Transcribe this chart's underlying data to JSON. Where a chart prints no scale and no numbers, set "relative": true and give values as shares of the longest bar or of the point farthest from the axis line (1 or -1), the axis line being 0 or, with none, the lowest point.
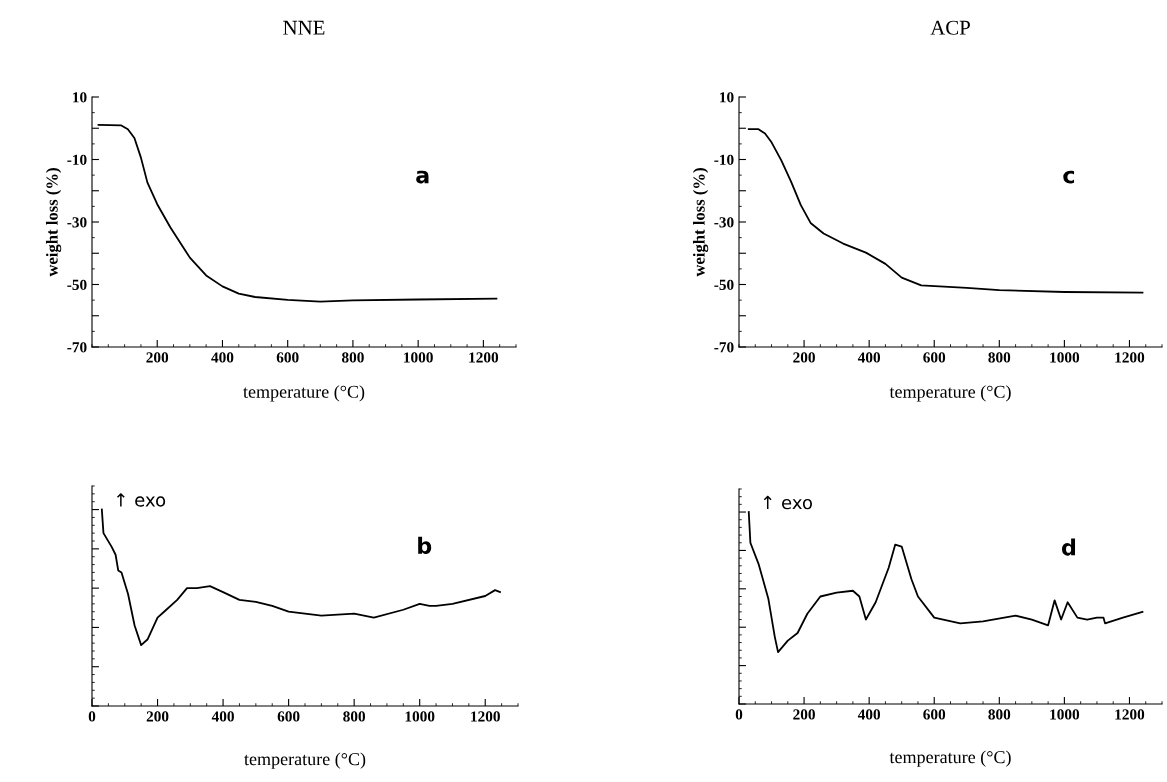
{
  "chart_data": [
    {
      "type": "line",
      "title": "NNE",
      "xlabel": "temperature (°C)",
      "ylabel": "weight loss (%)",
      "annotations": [
        "a"
      ],
      "xlim": [
        0,
        1300
      ],
      "xticks": [
        200,
        400,
        600,
        800,
        1000,
        1200
      ],
      "ylim": [
        -70,
        10
      ],
      "yticks": [
        10,
        {
          "value": 0,
          "label": null
        },
        -10,
        {
          "value": -20,
          "label": null
        },
        -30,
        {
          "value": -40,
          "label": null
        },
        -50,
        {
          "value": -60,
          "label": null
        },
        -70
      ],
      "x": [
        20,
        90,
        110,
        130,
        150,
        170,
        200,
        240,
        300,
        350,
        400,
        450,
        500,
        600,
        700,
        800,
        1000,
        1240
      ],
      "series": [
        {
          "color": "#000000",
          "values": [
            1.1,
            0.9,
            -0.3,
            -3.1,
            -9.4,
            -17.4,
            -24.3,
            -31.7,
            -41.4,
            -47.1,
            -50.6,
            -52.9,
            -54,
            -54.9,
            -55.5,
            -55.1,
            -54.8,
            -54.5
          ]
        }
      ]
    },
    {
      "type": "line",
      "title": "ACP",
      "xlabel": "temperature (°C)",
      "ylabel": "weight loss (%)",
      "annotations": [
        "c"
      ],
      "xlim": [
        0,
        1300
      ],
      "xticks": [
        200,
        400,
        600,
        800,
        1000,
        1200
      ],
      "ylim": [
        -70,
        10
      ],
      "yticks": [
        10,
        {
          "value": 0,
          "label": null
        },
        -10,
        {
          "value": -20,
          "label": null
        },
        -30,
        {
          "value": -40,
          "label": null
        },
        -50,
        {
          "value": -60,
          "label": null
        },
        -70
      ],
      "x": [
        30,
        60,
        80,
        100,
        130,
        160,
        190,
        220,
        260,
        320,
        390,
        450,
        500,
        560,
        700,
        800,
        1000,
        1240
      ],
      "series": [
        {
          "color": "#000000",
          "values": [
            -0.3,
            -0.3,
            -1.7,
            -4.5,
            -10.3,
            -17.1,
            -24.6,
            -30.3,
            -33.7,
            -36.9,
            -39.8,
            -43.4,
            -47.8,
            -50.3,
            -51.1,
            -51.8,
            -52.4,
            -52.6
          ]
        }
      ]
    },
    {
      "type": "line",
      "relative": true,
      "tick_labels": "x",
      "xlabel": "temperature (°C)",
      "annotations": [
        "↑ exo",
        "b"
      ],
      "xlim": [
        0,
        1300
      ],
      "xticks": [
        0,
        200,
        400,
        600,
        800,
        1000,
        1200
      ],
      "x": [
        30,
        35,
        60,
        72,
        80,
        90,
        110,
        130,
        150,
        170,
        200,
        220,
        260,
        290,
        320,
        360,
        400,
        450,
        500,
        550,
        600,
        700,
        800,
        860,
        950,
        1000,
        1030,
        1050,
        1100,
        1200,
        1230,
        1245
      ],
      "series": [
        {
          "color": "#000000",
          "values": [
            1.0,
            0.88,
            0.81,
            0.77,
            0.69,
            0.68,
            0.57,
            0.41,
            0.31,
            0.34,
            0.45,
            0.48,
            0.54,
            0.6,
            0.6,
            0.61,
            0.58,
            0.54,
            0.53,
            0.51,
            0.48,
            0.46,
            0.47,
            0.45,
            0.49,
            0.52,
            0.51,
            0.51,
            0.52,
            0.56,
            0.59,
            0.58
          ]
        }
      ]
    },
    {
      "type": "line",
      "relative": true,
      "tick_labels": "x",
      "xlabel": "temperature (°C)",
      "annotations": [
        "↑ exo",
        "d"
      ],
      "xlim": [
        0,
        1300
      ],
      "xticks": [
        0,
        200,
        400,
        600,
        800,
        1000,
        1200
      ],
      "x": [
        30,
        35,
        60,
        90,
        110,
        120,
        150,
        180,
        210,
        250,
        300,
        350,
        370,
        390,
        420,
        460,
        480,
        500,
        530,
        550,
        600,
        680,
        750,
        850,
        900,
        950,
        970,
        990,
        1010,
        1040,
        1070,
        1100,
        1120,
        1125,
        1180,
        1240
      ],
      "series": [
        {
          "color": "#000000",
          "values": [
            1.0,
            0.84,
            0.73,
            0.55,
            0.35,
            0.27,
            0.33,
            0.37,
            0.47,
            0.56,
            0.58,
            0.59,
            0.56,
            0.44,
            0.53,
            0.71,
            0.83,
            0.82,
            0.65,
            0.56,
            0.45,
            0.42,
            0.43,
            0.46,
            0.44,
            0.41,
            0.54,
            0.44,
            0.53,
            0.45,
            0.44,
            0.45,
            0.45,
            0.42,
            0.45,
            0.48
          ]
        }
      ]
    }
  ]
}
